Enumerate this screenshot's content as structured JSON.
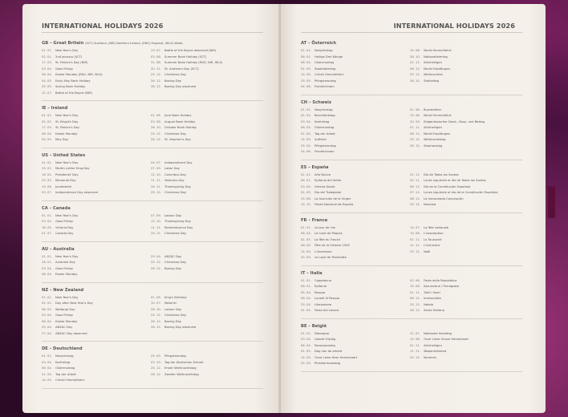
{
  "header": {
    "title": "INTERNATIONAL HOLIDAYS  2026"
  },
  "colors": {
    "paper": "#f4efe9",
    "band": "#5a0f3a",
    "background": "#2b0a25"
  },
  "left_page": [
    {
      "code": "GB – Great Britain",
      "note": "(SCT) Scotland, (NIR) Northern Ireland, (ENG) England, (WLS) Wales",
      "col1": [
        [
          "01. 01.",
          "New Year's Day"
        ],
        [
          "02. 01.",
          "2nd January (SCT)"
        ],
        [
          "17. 03.",
          "St. Patrick's Day (NIR)"
        ],
        [
          "03. 04.",
          "Good Friday"
        ],
        [
          "06. 04.",
          "Easter Monday (ENG, NIR, WLS)"
        ],
        [
          "04. 05.",
          "Early May Bank Holiday"
        ],
        [
          "25. 05.",
          "Spring Bank Holiday"
        ],
        [
          "12. 07.",
          "Battle of the Boyne (NIR)"
        ]
      ],
      "col2": [
        [
          "13. 07.",
          "Battle of the Boyne observed (NIR)"
        ],
        [
          "03. 08.",
          "Summer Bank Holiday (SCT)"
        ],
        [
          "31. 08.",
          "Summer Bank Holiday (ENG, NIR, WLS)"
        ],
        [
          "30. 11.",
          "St. Andrew's Day (SCT)"
        ],
        [
          "25. 12.",
          "Christmas Day"
        ],
        [
          "26. 12.",
          "Boxing Day"
        ],
        [
          "28. 12.",
          "Boxing Day observed"
        ]
      ]
    },
    {
      "code": "IE – Ireland",
      "note": "",
      "col1": [
        [
          "01. 01.",
          "New Year's Day"
        ],
        [
          "02. 02.",
          "St. Brigid's Day"
        ],
        [
          "17. 03.",
          "St. Patrick's Day"
        ],
        [
          "06. 04.",
          "Easter Monday"
        ],
        [
          "04. 05.",
          "May Day"
        ]
      ],
      "col2": [
        [
          "01. 06.",
          "June Bank Holiday"
        ],
        [
          "03. 08.",
          "August Bank Holiday"
        ],
        [
          "26. 10.",
          "October Bank Holiday"
        ],
        [
          "25. 12.",
          "Christmas Day"
        ],
        [
          "26. 12.",
          "St. Stephen's Day"
        ]
      ]
    },
    {
      "code": "US – United States",
      "note": "",
      "col1": [
        [
          "01. 01.",
          "New Year's Day"
        ],
        [
          "19. 01.",
          "Martin Luther King Day"
        ],
        [
          "16. 02.",
          "Presidents' Day"
        ],
        [
          "25. 05.",
          "Memorial Day"
        ],
        [
          "19. 06.",
          "Juneteenth"
        ],
        [
          "03. 07.",
          "Independence Day observed"
        ]
      ],
      "col2": [
        [
          "04. 07.",
          "Independence Day"
        ],
        [
          "07. 09.",
          "Labor Day"
        ],
        [
          "12. 10.",
          "Columbus Day"
        ],
        [
          "11. 11.",
          "Veterans Day"
        ],
        [
          "26. 11.",
          "Thanksgiving Day"
        ],
        [
          "25. 12.",
          "Christmas Day"
        ]
      ]
    },
    {
      "code": "CA – Canada",
      "note": "",
      "col1": [
        [
          "01. 01.",
          "New Year's Day"
        ],
        [
          "03. 04.",
          "Good Friday"
        ],
        [
          "18. 05.",
          "Victoria Day"
        ],
        [
          "01. 07.",
          "Canada Day"
        ]
      ],
      "col2": [
        [
          "07. 09.",
          "Labour Day"
        ],
        [
          "12. 10.",
          "Thanksgiving Day"
        ],
        [
          "11. 11.",
          "Remembrance Day"
        ],
        [
          "25. 12.",
          "Christmas Day"
        ]
      ]
    },
    {
      "code": "AU – Australia",
      "note": "",
      "col1": [
        [
          "01. 01.",
          "New Year's Day"
        ],
        [
          "26. 01.",
          "Australia Day"
        ],
        [
          "03. 04.",
          "Good Friday"
        ],
        [
          "06. 04.",
          "Easter Monday"
        ]
      ],
      "col2": [
        [
          "25. 04.",
          "ANZAC Day"
        ],
        [
          "25. 12.",
          "Christmas Day"
        ],
        [
          "26. 12.",
          "Boxing Day"
        ]
      ]
    },
    {
      "code": "NZ – New Zealand",
      "note": "",
      "col1": [
        [
          "01. 01.",
          "New Year's Day"
        ],
        [
          "02. 01.",
          "Day after New Year's Day"
        ],
        [
          "06. 02.",
          "Waitangi Day"
        ],
        [
          "03. 04.",
          "Good Friday"
        ],
        [
          "06. 04.",
          "Easter Monday"
        ],
        [
          "25. 04.",
          "ANZAC Day"
        ],
        [
          "27. 04.",
          "ANZAC Day observed"
        ]
      ],
      "col2": [
        [
          "01. 06.",
          "King's Birthday"
        ],
        [
          "10. 07.",
          "Matariki"
        ],
        [
          "26. 10.",
          "Labour Day"
        ],
        [
          "25. 12.",
          "Christmas Day"
        ],
        [
          "26. 12.",
          "Boxing Day"
        ],
        [
          "28. 12.",
          "Boxing Day observed"
        ]
      ]
    },
    {
      "code": "DE – Deutschland",
      "note": "",
      "col1": [
        [
          "01. 01.",
          "Neujahrstag"
        ],
        [
          "03. 04.",
          "Karfreitag"
        ],
        [
          "06. 04.",
          "Ostermontag"
        ],
        [
          "01. 05.",
          "Tag der Arbeit"
        ],
        [
          "14. 05.",
          "Christi Himmelfahrt"
        ]
      ],
      "col2": [
        [
          "25. 05.",
          "Pfingstmontag"
        ],
        [
          "03. 10.",
          "Tag der Deutschen Einheit"
        ],
        [
          "25. 12.",
          "Erster Weihnachtstag"
        ],
        [
          "26. 12.",
          "Zweiter Weihnachtstag"
        ]
      ]
    }
  ],
  "right_page": [
    {
      "code": "AT – Österreich",
      "note": "",
      "col1": [
        [
          "01. 01.",
          "Neujahrstag"
        ],
        [
          "06. 01.",
          "Heilige Drei Könige"
        ],
        [
          "06. 04.",
          "Ostermontag"
        ],
        [
          "01. 05.",
          "Staatsfeiertag"
        ],
        [
          "14. 05.",
          "Christi Himmelfahrt"
        ],
        [
          "25. 05.",
          "Pfingstmontag"
        ],
        [
          "04. 06.",
          "Fronleichnam"
        ]
      ],
      "col2": [
        [
          "15. 08.",
          "Mariä Himmelfahrt"
        ],
        [
          "26. 10.",
          "Nationalfeiertag"
        ],
        [
          "01. 11.",
          "Allerheiligen"
        ],
        [
          "08. 12.",
          "Mariä Empfängnis"
        ],
        [
          "25. 12.",
          "Weihnachten"
        ],
        [
          "26. 12.",
          "Stefanitag"
        ]
      ]
    },
    {
      "code": "CH – Schweiz",
      "note": "",
      "col1": [
        [
          "01. 01.",
          "Neujahrstag"
        ],
        [
          "02. 01.",
          "Berchtoldstag"
        ],
        [
          "03. 04.",
          "Karfreitag"
        ],
        [
          "06. 04.",
          "Ostermontag"
        ],
        [
          "01. 05.",
          "Tag der Arbeit"
        ],
        [
          "14. 05.",
          "Auffahrt"
        ],
        [
          "25. 05.",
          "Pfingstmontag"
        ],
        [
          "04. 06.",
          "Fronleichnam"
        ]
      ],
      "col2": [
        [
          "01. 08.",
          "Bundesfeier"
        ],
        [
          "15. 08.",
          "Mariä Himmelfahrt"
        ],
        [
          "20. 09.",
          "Eidgenössischer Dank-, Buss- und Bettag"
        ],
        [
          "01. 11.",
          "Allerheiligen"
        ],
        [
          "08. 12.",
          "Mariä Empfängnis"
        ],
        [
          "25. 12.",
          "Weihnachtstag"
        ],
        [
          "26. 12.",
          "Stephanstag"
        ]
      ]
    },
    {
      "code": "ES – España",
      "note": "",
      "col1": [
        [
          "01. 01.",
          "Año Nuevo"
        ],
        [
          "06. 01.",
          "Epifanía del Señor"
        ],
        [
          "03. 04.",
          "Viernes Santo"
        ],
        [
          "01. 05.",
          "Día del Trabajador"
        ],
        [
          "15. 08.",
          "La Asunción de la Virgen"
        ],
        [
          "12. 10.",
          "Fiesta Nacional de España"
        ]
      ],
      "col2": [
        [
          "01. 11.",
          "Día de Todos los Santos"
        ],
        [
          "02. 11.",
          "Lunes siguiente al día de Todos los Santos"
        ],
        [
          "06. 12.",
          "Día de la Constitución Española"
        ],
        [
          "07. 12.",
          "Lunes siguiente al día de la Constitución Española"
        ],
        [
          "08. 12.",
          "La Inmaculada Concepción"
        ],
        [
          "25. 12.",
          "Navidad"
        ]
      ]
    },
    {
      "code": "FR – France",
      "note": "",
      "col1": [
        [
          "01. 01.",
          "Le Jour de l'an"
        ],
        [
          "06. 04.",
          "Le lundi de Pâques"
        ],
        [
          "01. 05.",
          "La fête du Travail"
        ],
        [
          "08. 05.",
          "Fête de la Victoire 1945"
        ],
        [
          "14. 05.",
          "L'Ascension"
        ],
        [
          "25. 05.",
          "Le lundi de Pentecôte"
        ]
      ],
      "col2": [
        [
          "14. 07.",
          "La fête nationale"
        ],
        [
          "15. 08.",
          "L'Assomption"
        ],
        [
          "01. 11.",
          "La Toussaint"
        ],
        [
          "11. 11.",
          "L'Armistice"
        ],
        [
          "25. 12.",
          "Noël"
        ]
      ]
    },
    {
      "code": "IT – Italia",
      "note": "",
      "col1": [
        [
          "01. 01.",
          "Capodanno"
        ],
        [
          "06. 01.",
          "Epifania"
        ],
        [
          "05. 04.",
          "Pasqua"
        ],
        [
          "06. 04.",
          "Lunedì di Pasqua"
        ],
        [
          "25. 04.",
          "Liberazione"
        ],
        [
          "01. 05.",
          "Festa del Lavoro"
        ]
      ],
      "col2": [
        [
          "02. 06.",
          "Festa della Repubblica"
        ],
        [
          "15. 08.",
          "Assunzione / Ferragosto"
        ],
        [
          "01. 11.",
          "Tutti i Santi"
        ],
        [
          "08. 12.",
          "Immacolata"
        ],
        [
          "25. 12.",
          "Natale"
        ],
        [
          "26. 12.",
          "Santo Stefano"
        ]
      ]
    },
    {
      "code": "BE – België",
      "note": "",
      "col1": [
        [
          "01. 01.",
          "Nieuwjaar"
        ],
        [
          "03. 04.",
          "Goede Vrijdag"
        ],
        [
          "06. 04.",
          "Paasmaandag"
        ],
        [
          "01. 05.",
          "Dag van de arbeid"
        ],
        [
          "14. 05.",
          "Onze Lieve Heer Hemelvaart"
        ],
        [
          "25. 05.",
          "Pinkstermaandag"
        ]
      ],
      "col2": [
        [
          "21. 07.",
          "Nationale feestdag"
        ],
        [
          "15. 08.",
          "Onze Lieve Vrouw Hemelvaart"
        ],
        [
          "01. 11.",
          "Allerheiligen"
        ],
        [
          "11. 11.",
          "Wapenstilstand"
        ],
        [
          "25. 12.",
          "Kerstmis"
        ]
      ]
    }
  ]
}
